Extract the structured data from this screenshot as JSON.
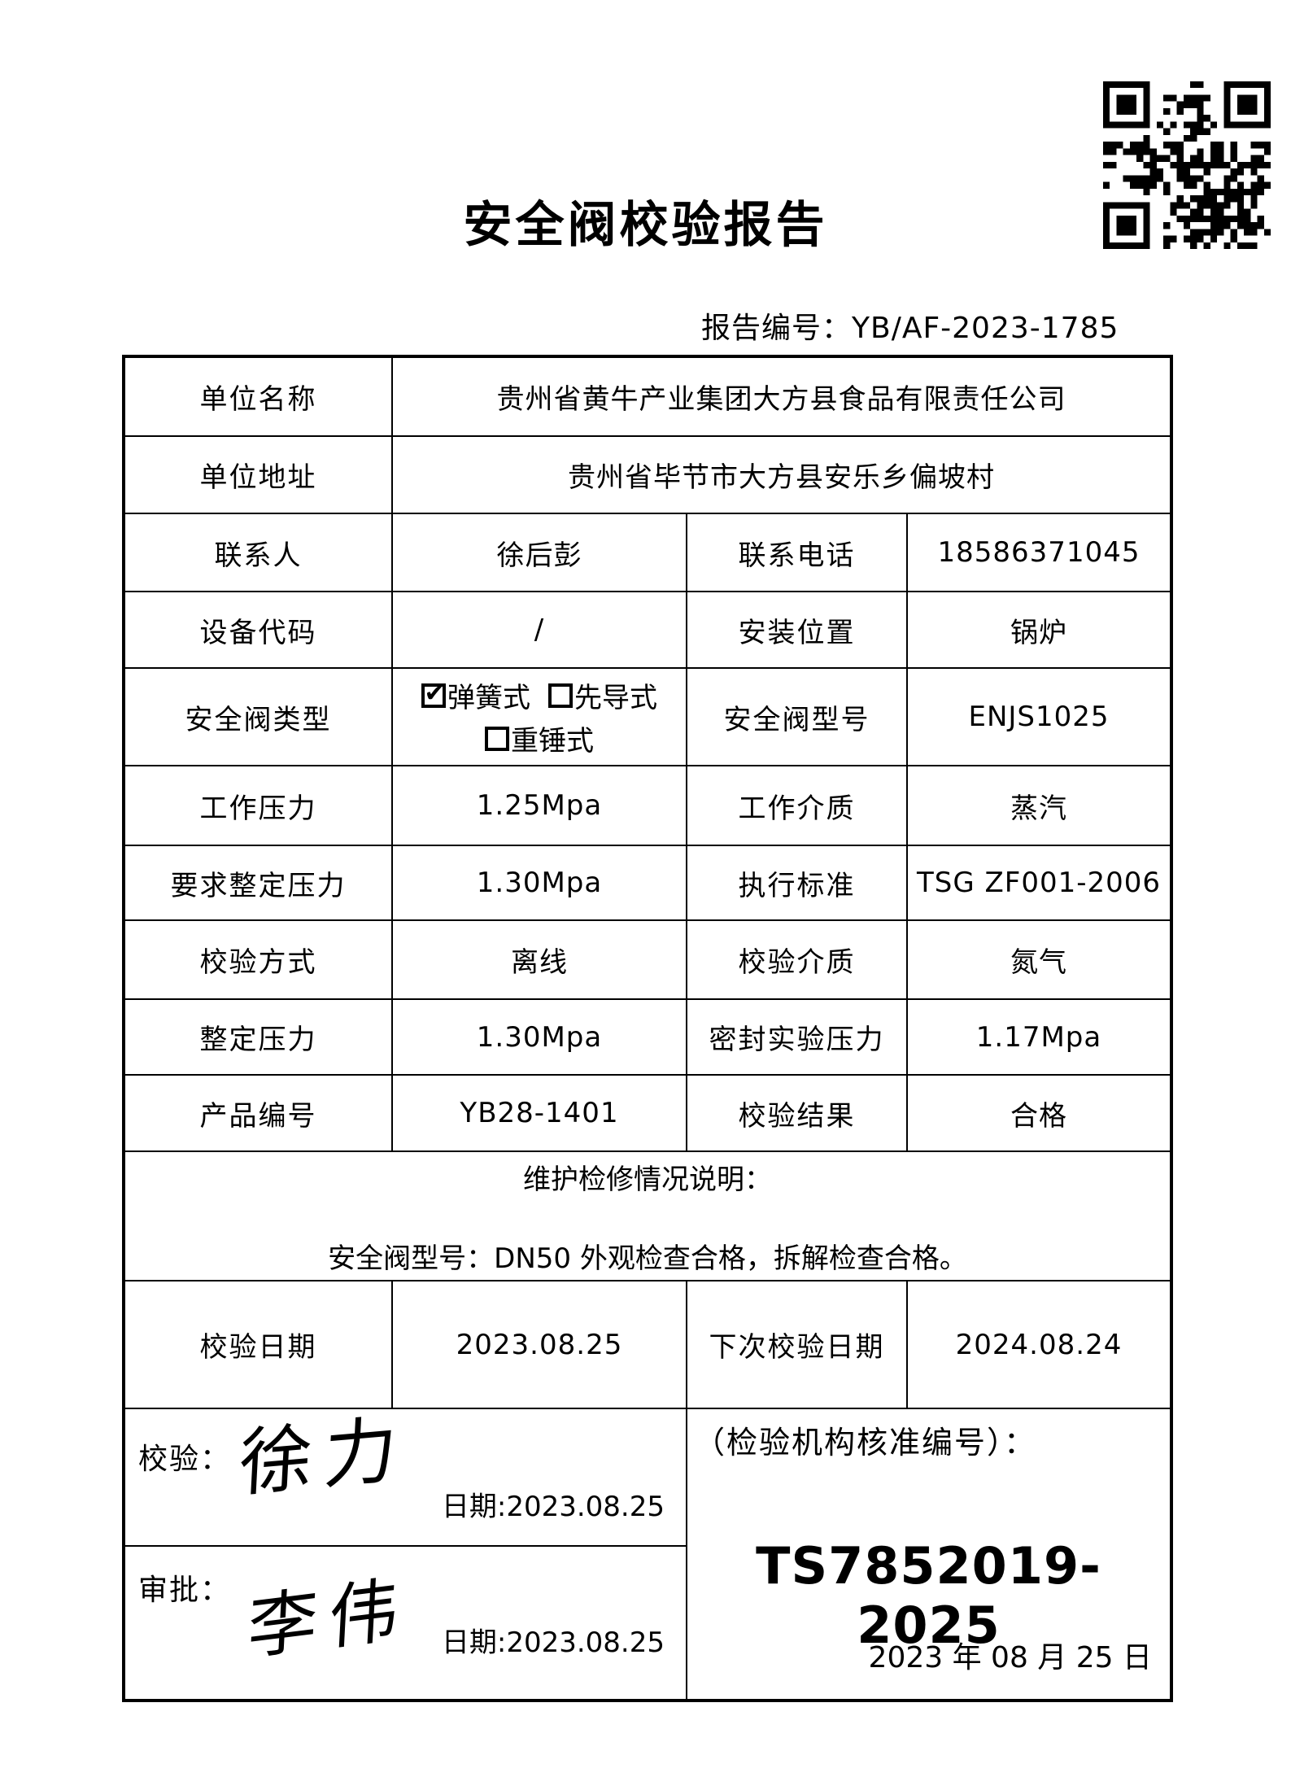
{
  "page": {
    "title": "安全阀校验报告",
    "report_no_label": "报告编号：",
    "report_no": "YB/AF-2023-1785"
  },
  "icons": {
    "qr_code": "qr-pattern",
    "checkbox_checked": "☑",
    "checkbox_unchecked": "□"
  },
  "colors": {
    "ink": "#000000",
    "paper": "#ffffff"
  },
  "fields": {
    "unit_name": {
      "label": "单位名称",
      "value": "贵州省黄牛产业集团大方县食品有限责任公司"
    },
    "unit_address": {
      "label": "单位地址",
      "value": "贵州省毕节市大方县安乐乡偏坡村"
    },
    "contact": {
      "label": "联系人",
      "value": "徐后彭"
    },
    "phone": {
      "label": "联系电话",
      "value": "18586371045"
    },
    "device_code": {
      "label": "设备代码",
      "value": "/"
    },
    "install_location": {
      "label": "安装位置",
      "value": "锅炉"
    },
    "valve_type": {
      "label": "安全阀类型",
      "options": [
        {
          "mark": "✔",
          "label": "弹簧式"
        },
        {
          "mark": "",
          "label": "先导式"
        },
        {
          "mark": "",
          "label": "重锤式"
        }
      ]
    },
    "valve_model": {
      "label": "安全阀型号",
      "value": "ENJS1025"
    },
    "working_pressure": {
      "label": "工作压力",
      "value": "1.25Mpa"
    },
    "working_medium": {
      "label": "工作介质",
      "value": "蒸汽"
    },
    "required_set_pressure": {
      "label": "要求整定压力",
      "value": "1.30Mpa"
    },
    "standard": {
      "label": "执行标准",
      "value": "TSG ZF001-2006"
    },
    "calibration_method": {
      "label": "校验方式",
      "value": "离线"
    },
    "calibration_medium": {
      "label": "校验介质",
      "value": "氮气"
    },
    "set_pressure": {
      "label": "整定压力",
      "value": "1.30Mpa"
    },
    "seal_test_pressure": {
      "label": "密封实验压力",
      "value": "1.17Mpa"
    },
    "product_no": {
      "label": "产品编号",
      "value": "YB28-1401"
    },
    "calibration_result": {
      "label": "校验结果",
      "value": "合格"
    },
    "maintenance": {
      "title": "维护检修情况说明：",
      "detail": "安全阀型号：DN50 外观检查合格，拆解检查合格。"
    },
    "calibration_date": {
      "label": "校验日期",
      "value": "2023.08.25"
    },
    "next_calibration_date": {
      "label": "下次校验日期",
      "value": "2024.08.24"
    },
    "calibrator": {
      "label": "校验：",
      "signature": "徐力",
      "date_line": "日期:2023.08.25"
    },
    "approver": {
      "label": "审批：",
      "signature": "李伟",
      "date_line": "日期:2023.08.25"
    },
    "agency": {
      "label": "（检验机构核准编号）：",
      "approval_no": "TS7852019-2025",
      "issue_date": "2023 年 08 月 25 日"
    }
  }
}
